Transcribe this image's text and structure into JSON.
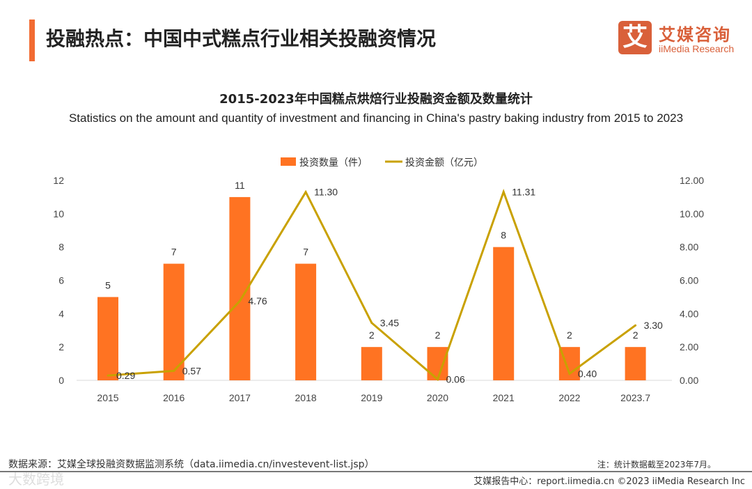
{
  "header": {
    "title": "投融热点：中国中式糕点行业相关投融资情况",
    "logo_mark": "艾",
    "logo_cn": "艾媒咨询",
    "logo_en": "iiMedia Research"
  },
  "chart_data": {
    "type": "bar+line",
    "title": "2015-2023年中国糕点烘焙行业投融资金额及数量统计",
    "subtitle": "Statistics on the amount and quantity of investment and financing in China's pastry baking industry from 2015 to 2023",
    "categories": [
      "2015",
      "2016",
      "2017",
      "2018",
      "2019",
      "2020",
      "2021",
      "2022",
      "2023.7"
    ],
    "series": [
      {
        "name": "投资数量（件）",
        "type": "bar",
        "axis": "left",
        "color": "#ff7322",
        "values": [
          5,
          7,
          11,
          7,
          2,
          2,
          8,
          2,
          2
        ]
      },
      {
        "name": "投资金额（亿元）",
        "type": "line",
        "axis": "right",
        "color": "#c9a100",
        "values": [
          0.29,
          0.57,
          4.76,
          11.3,
          3.45,
          0.06,
          11.31,
          0.4,
          3.3
        ]
      }
    ],
    "left_axis": {
      "ylim": [
        0,
        12
      ],
      "ticks": [
        "0",
        "2",
        "4",
        "6",
        "8",
        "10",
        "12"
      ]
    },
    "right_axis": {
      "ylim": [
        0,
        12
      ],
      "ticks": [
        "0.00",
        "2.00",
        "4.00",
        "6.00",
        "8.00",
        "10.00",
        "12.00"
      ]
    },
    "legend": "top-center",
    "grid": false
  },
  "footer": {
    "source": "数据来源：艾媒全球投融资数据监测系统（data.iimedia.cn/investevent-list.jsp）",
    "note": "注：统计数据截至2023年7月。",
    "credit": "艾媒报告中心：report.iimedia.cn   ©2023  iiMedia Research  Inc",
    "watermark": "大数跨境"
  }
}
